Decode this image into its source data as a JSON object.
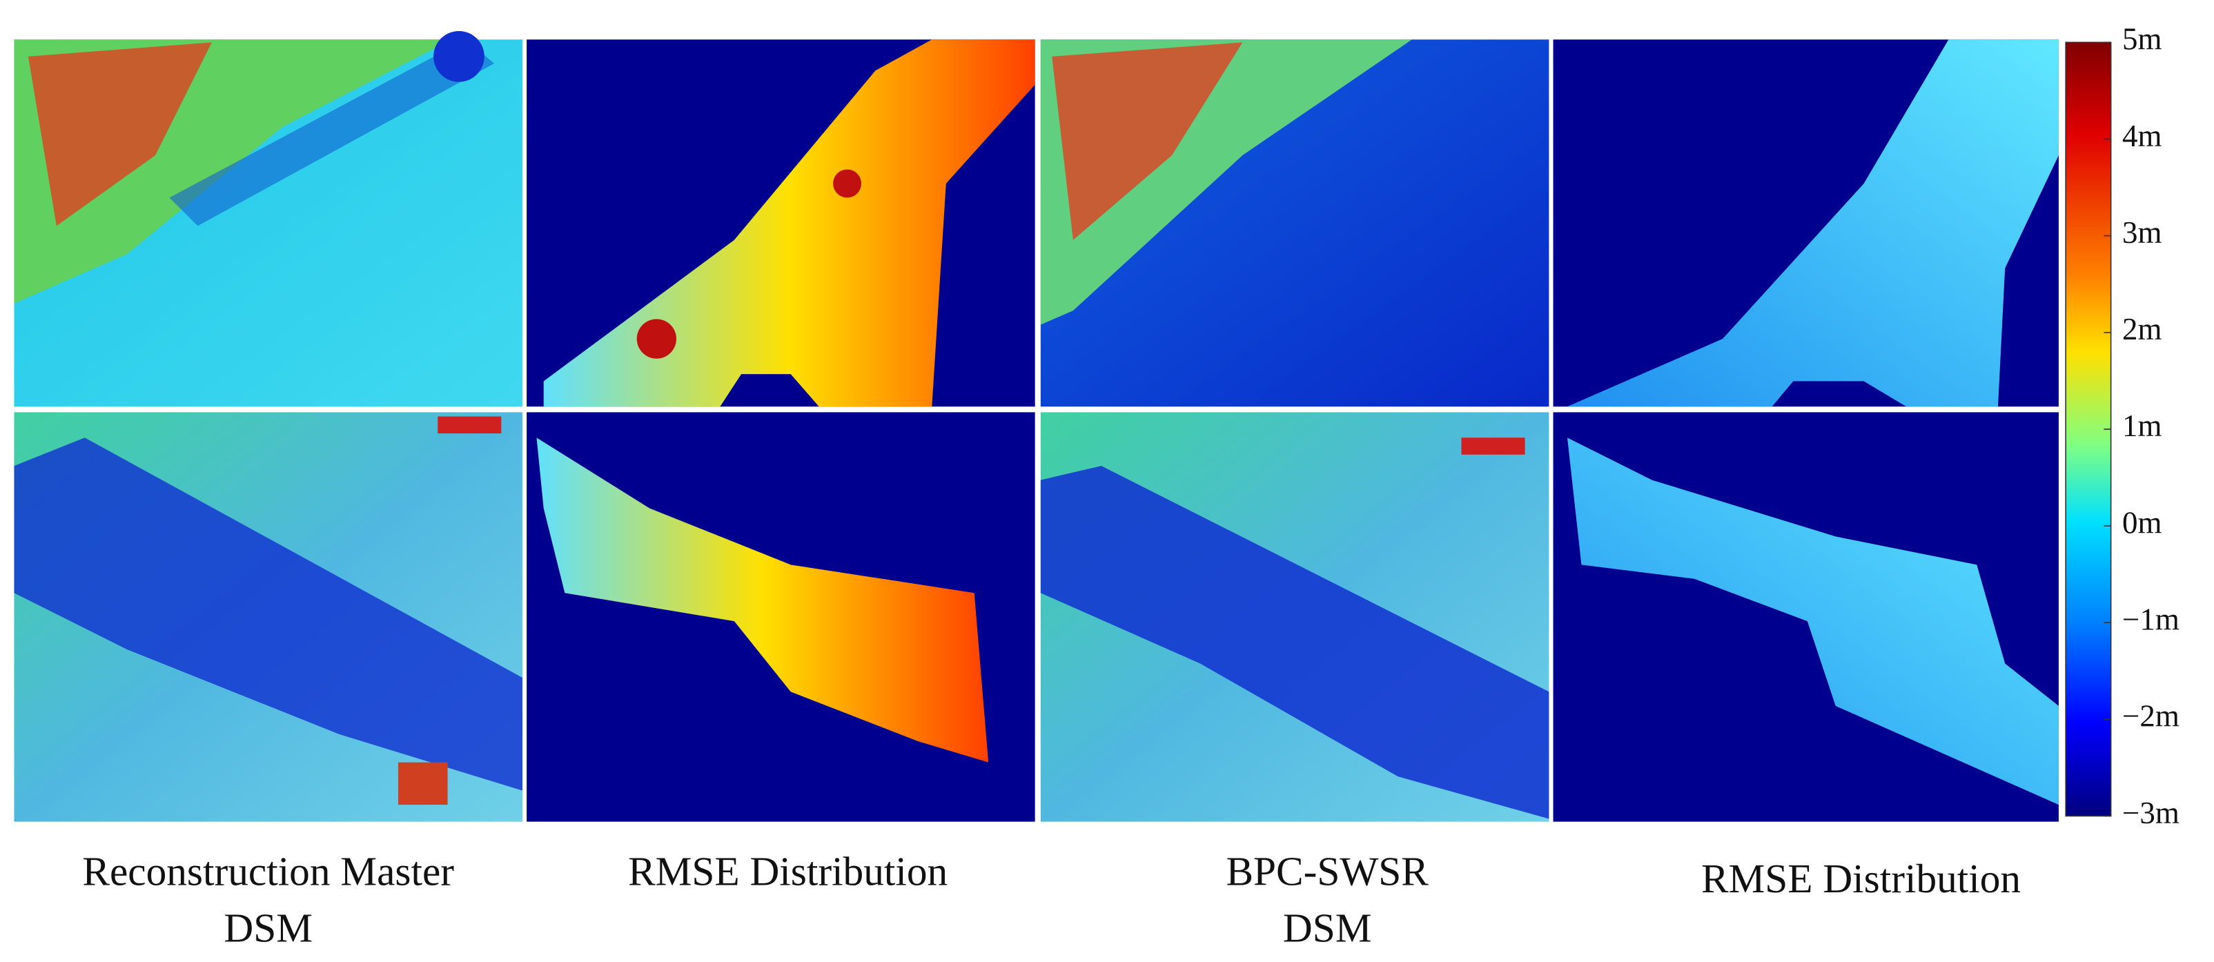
{
  "captions": [
    {
      "lines": [
        "Reconstruction Master",
        "DSM"
      ]
    },
    {
      "lines": [
        "RMSE Distribution"
      ]
    },
    {
      "lines": [
        "BPC-SWSR",
        "DSM"
      ]
    },
    {
      "lines": [
        "RMSE Distribution"
      ]
    }
  ],
  "colorbar": {
    "lim": [
      -3,
      5
    ],
    "ticks": [
      {
        "value": 5,
        "label": "5m"
      },
      {
        "value": 4,
        "label": "4m"
      },
      {
        "value": 3,
        "label": "3m"
      },
      {
        "value": 2,
        "label": "2m"
      },
      {
        "value": 1,
        "label": "1m"
      },
      {
        "value": 0,
        "label": "0m"
      },
      {
        "value": -1,
        "label": "−1m"
      },
      {
        "value": -2,
        "label": "−2m"
      },
      {
        "value": -3,
        "label": "−3m"
      }
    ]
  }
}
